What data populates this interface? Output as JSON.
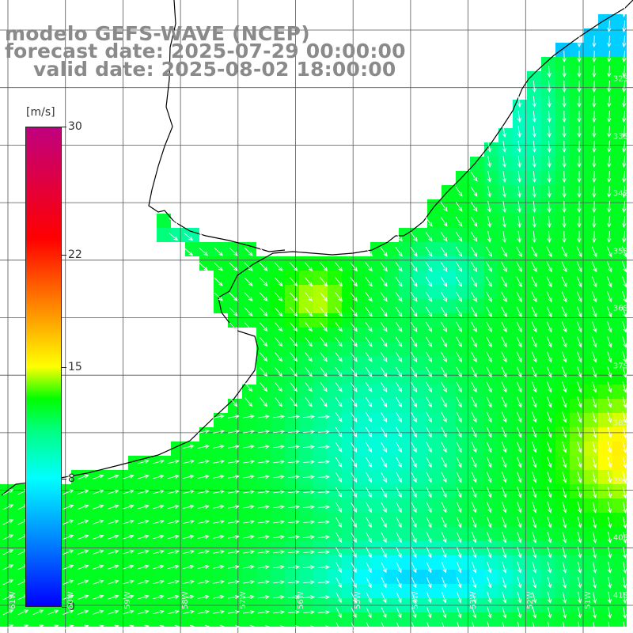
{
  "title": {
    "line1": "modelo GEFS-WAVE (NCEP)",
    "line2": "forecast date: 2025-07-29 00:00:00",
    "line3": "valid date: 2025-08-02 18:00:00"
  },
  "colorbar": {
    "unit": "[m/s]",
    "ticks": [
      "30",
      "22",
      "15",
      "8",
      "0"
    ],
    "tick_values": [
      30,
      22,
      15,
      8,
      0
    ],
    "range": [
      0,
      30
    ],
    "stops": [
      {
        "v": 0,
        "color": "#0000ff"
      },
      {
        "v": 4,
        "color": "#0080ff"
      },
      {
        "v": 8,
        "color": "#00ffff"
      },
      {
        "v": 11,
        "color": "#00ff80"
      },
      {
        "v": 13,
        "color": "#00ff00"
      },
      {
        "v": 15,
        "color": "#ffff00"
      },
      {
        "v": 19,
        "color": "#ff8000"
      },
      {
        "v": 23,
        "color": "#ff0000"
      },
      {
        "v": 30,
        "color": "#c0007f"
      }
    ]
  },
  "map": {
    "land_color": "#ffffff",
    "grid_color": "#555555",
    "arrow_color": "#ffffff",
    "coast_color": "#000000",
    "lat_labels": [
      "32S",
      "33S",
      "34S",
      "35S",
      "36S",
      "37S",
      "38S",
      "39S",
      "40S",
      "41S"
    ],
    "lon_labels": [
      "61W",
      "60W",
      "59W",
      "58W",
      "57W",
      "56W",
      "55W",
      "54W",
      "53W",
      "52W",
      "51W"
    ],
    "field_description": "wind speed field with direction arrows"
  }
}
